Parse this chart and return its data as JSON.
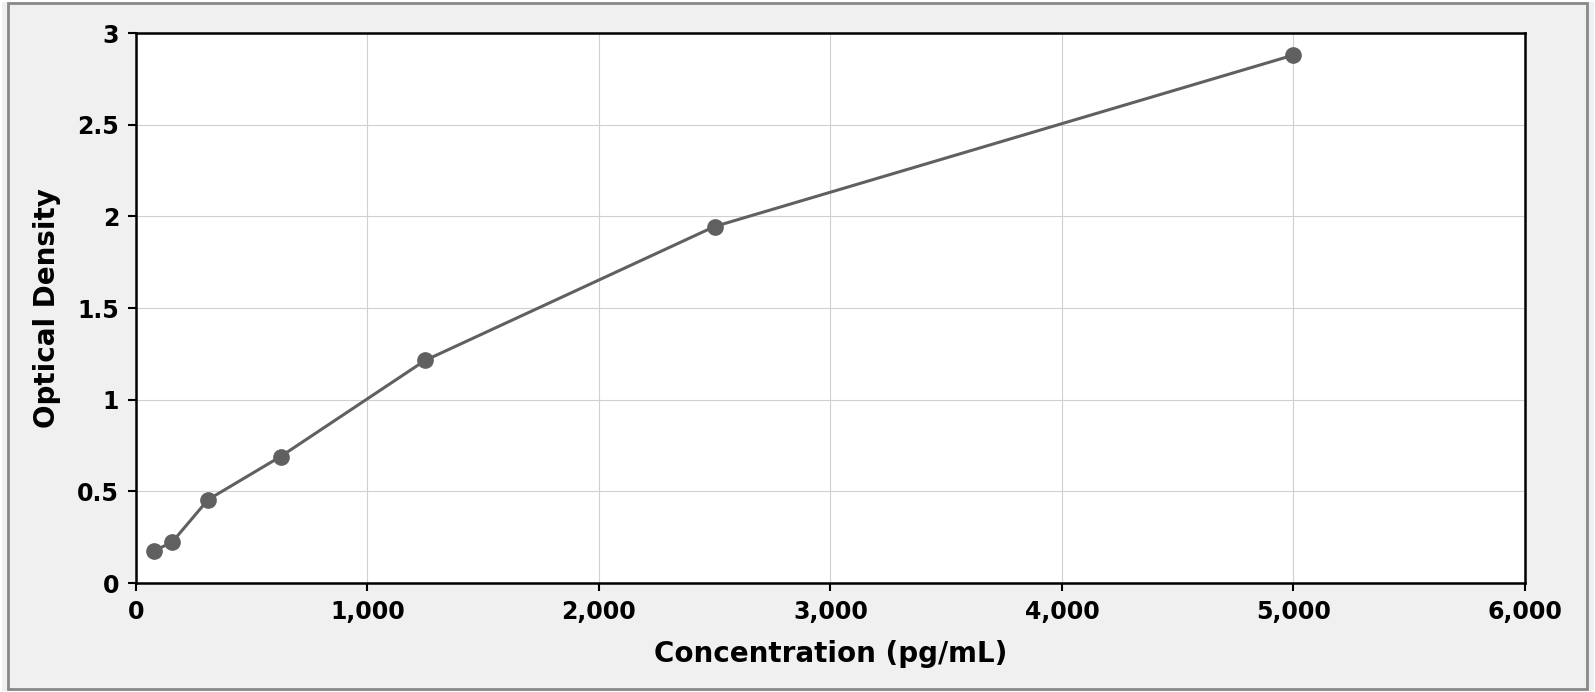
{
  "data_points_x": [
    78,
    156,
    312,
    625,
    1250,
    2500,
    5000
  ],
  "data_points_y": [
    0.176,
    0.222,
    0.455,
    0.69,
    1.215,
    1.945,
    2.88
  ],
  "xlabel": "Concentration (pg/mL)",
  "ylabel": "Optical Density",
  "xlim": [
    0,
    6000
  ],
  "ylim": [
    0,
    3.0
  ],
  "xticks": [
    0,
    1000,
    2000,
    3000,
    4000,
    5000,
    6000
  ],
  "yticks": [
    0,
    0.5,
    1.0,
    1.5,
    2.0,
    2.5,
    3.0
  ],
  "data_color": "#606060",
  "line_color": "#606060",
  "background_color": "#f0f0f0",
  "plot_bg_color": "#ffffff",
  "border_color": "#000000",
  "xlabel_fontsize": 20,
  "ylabel_fontsize": 20,
  "tick_fontsize": 17,
  "marker_size": 11,
  "line_width": 2.2,
  "grid_color": "#d0d0d0",
  "grid_linewidth": 0.8,
  "outer_border_color": "#888888",
  "outer_border_linewidth": 2.0
}
